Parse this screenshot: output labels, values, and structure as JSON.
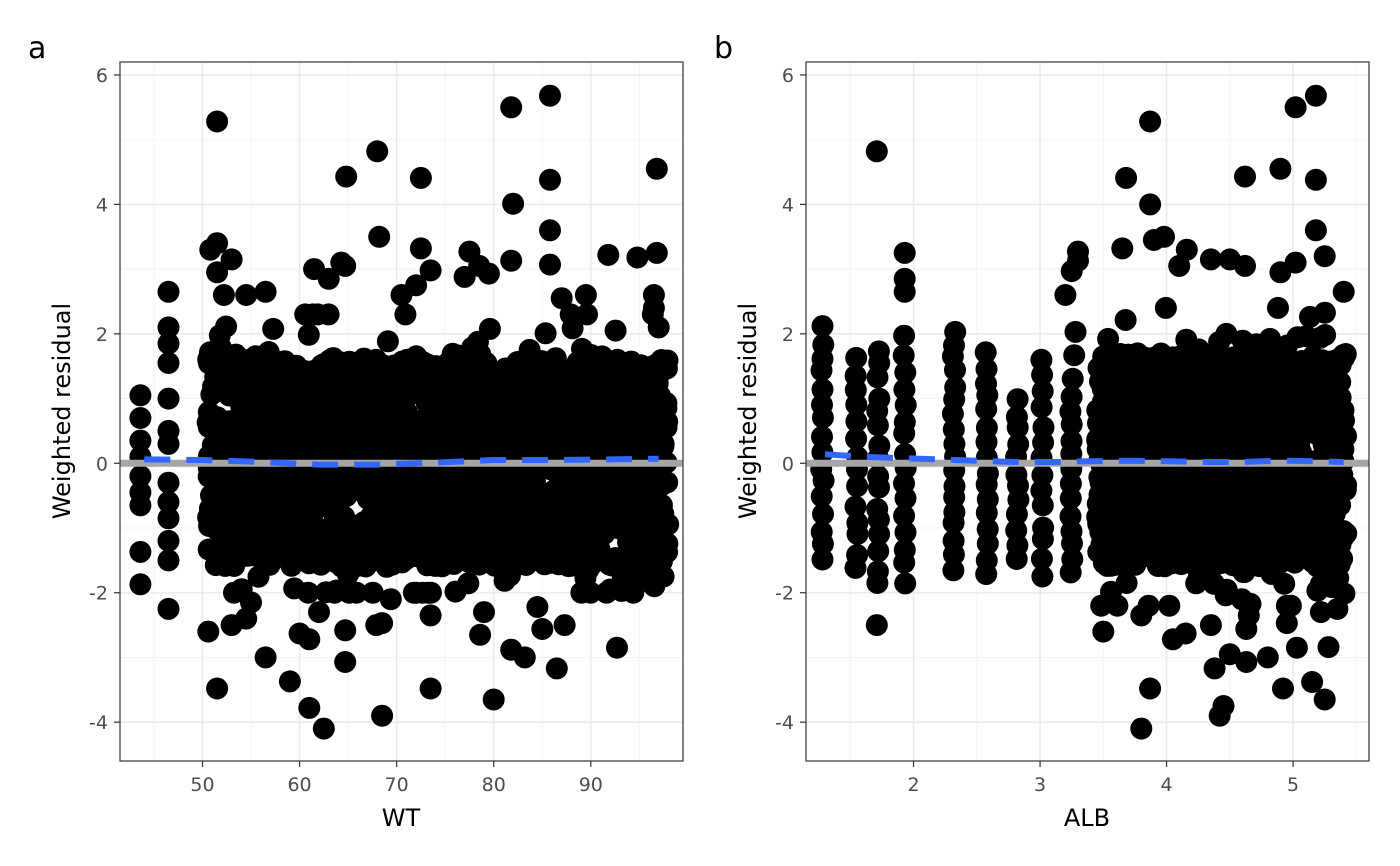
{
  "chart_data": [
    {
      "type": "scatter",
      "tag": "a",
      "xlabel": "WT",
      "ylabel": "Weighted residual",
      "xlim": [
        41.5,
        99.5
      ],
      "ylim": [
        -4.6,
        6.2
      ],
      "x_ticks": [
        50,
        60,
        70,
        80,
        90
      ],
      "x_tick_labels": [
        "50",
        "60",
        "70",
        "80",
        "90"
      ],
      "y_ticks": [
        -4,
        -2,
        0,
        2,
        4,
        6
      ],
      "y_tick_labels": [
        "-4",
        "-2",
        "0",
        "2",
        "4",
        "6"
      ],
      "grid": true,
      "reference_line": {
        "y": 0,
        "color": "#a6a6a6"
      },
      "smooth": {
        "color": "#3366ff",
        "x": [
          44,
          50,
          56,
          62,
          68,
          74,
          80,
          86,
          92,
          97
        ],
        "y": [
          0.06,
          0.05,
          0.02,
          -0.02,
          -0.02,
          0.01,
          0.05,
          0.05,
          0.06,
          0.07
        ]
      },
      "point_color": "#000000",
      "dense_region": {
        "x_range": [
          50.5,
          98
        ],
        "y_core": [
          -1.6,
          1.6
        ],
        "y_range": [
          -2.0,
          2.3
        ],
        "count": 1900
      },
      "points": [
        {
          "x": 43.6,
          "y": 1.05
        },
        {
          "x": 43.6,
          "y": 0.7
        },
        {
          "x": 43.6,
          "y": 0.35
        },
        {
          "x": 43.6,
          "y": 0.1
        },
        {
          "x": 43.6,
          "y": -0.2
        },
        {
          "x": 43.6,
          "y": -0.45
        },
        {
          "x": 43.6,
          "y": -0.65
        },
        {
          "x": 43.6,
          "y": -1.37
        },
        {
          "x": 43.6,
          "y": -1.87
        },
        {
          "x": 46.5,
          "y": 2.65
        },
        {
          "x": 46.5,
          "y": 2.1
        },
        {
          "x": 46.5,
          "y": 1.85
        },
        {
          "x": 46.5,
          "y": 1.55
        },
        {
          "x": 46.5,
          "y": 1.0
        },
        {
          "x": 46.5,
          "y": 0.5
        },
        {
          "x": 46.5,
          "y": 0.3
        },
        {
          "x": 46.5,
          "y": -0.3
        },
        {
          "x": 46.5,
          "y": -0.6
        },
        {
          "x": 46.5,
          "y": -0.85
        },
        {
          "x": 46.5,
          "y": -1.2
        },
        {
          "x": 46.5,
          "y": -1.5
        },
        {
          "x": 46.5,
          "y": -2.25
        },
        {
          "x": 51.5,
          "y": 5.28
        },
        {
          "x": 51.5,
          "y": -3.48
        },
        {
          "x": 50.6,
          "y": -2.6
        },
        {
          "x": 53.0,
          "y": -2.5
        },
        {
          "x": 51.5,
          "y": 3.4
        },
        {
          "x": 50.8,
          "y": 3.3
        },
        {
          "x": 53.0,
          "y": 3.15
        },
        {
          "x": 51.5,
          "y": 2.95
        },
        {
          "x": 52.2,
          "y": 2.6
        },
        {
          "x": 54.5,
          "y": 2.6
        },
        {
          "x": 56.5,
          "y": 2.65
        },
        {
          "x": 54.5,
          "y": -2.4
        },
        {
          "x": 55.0,
          "y": -2.15
        },
        {
          "x": 56.5,
          "y": -3.0
        },
        {
          "x": 59.0,
          "y": -3.37
        },
        {
          "x": 60.0,
          "y": -2.63
        },
        {
          "x": 61.0,
          "y": -2.72
        },
        {
          "x": 61.0,
          "y": -3.78
        },
        {
          "x": 62.5,
          "y": -4.1
        },
        {
          "x": 62.0,
          "y": -2.3
        },
        {
          "x": 61.5,
          "y": 3.0
        },
        {
          "x": 63.0,
          "y": 2.85
        },
        {
          "x": 64.3,
          "y": 3.1
        },
        {
          "x": 64.7,
          "y": 3.05
        },
        {
          "x": 64.8,
          "y": 4.43
        },
        {
          "x": 64.7,
          "y": -2.58
        },
        {
          "x": 64.7,
          "y": -3.07
        },
        {
          "x": 68.0,
          "y": 4.82
        },
        {
          "x": 68.2,
          "y": 3.5
        },
        {
          "x": 67.9,
          "y": -2.5
        },
        {
          "x": 68.5,
          "y": -2.47
        },
        {
          "x": 68.5,
          "y": -3.9
        },
        {
          "x": 69.4,
          "y": -2.1
        },
        {
          "x": 70.5,
          "y": 2.6
        },
        {
          "x": 72.0,
          "y": 2.75
        },
        {
          "x": 72.5,
          "y": 3.32
        },
        {
          "x": 72.5,
          "y": 4.41
        },
        {
          "x": 73.5,
          "y": 2.98
        },
        {
          "x": 73.5,
          "y": -3.48
        },
        {
          "x": 73.5,
          "y": -2.35
        },
        {
          "x": 77.0,
          "y": 2.88
        },
        {
          "x": 77.5,
          "y": 3.27
        },
        {
          "x": 78.5,
          "y": 3.05
        },
        {
          "x": 79.5,
          "y": 2.93
        },
        {
          "x": 79.0,
          "y": -2.3
        },
        {
          "x": 78.6,
          "y": -2.65
        },
        {
          "x": 80.0,
          "y": -3.65
        },
        {
          "x": 81.8,
          "y": 5.5
        },
        {
          "x": 82.0,
          "y": 4.01
        },
        {
          "x": 81.8,
          "y": 3.13
        },
        {
          "x": 81.8,
          "y": -2.88
        },
        {
          "x": 83.2,
          "y": -3.0
        },
        {
          "x": 85.0,
          "y": -2.56
        },
        {
          "x": 84.5,
          "y": -2.22
        },
        {
          "x": 85.8,
          "y": 5.68
        },
        {
          "x": 85.8,
          "y": 4.38
        },
        {
          "x": 85.8,
          "y": 3.6
        },
        {
          "x": 85.8,
          "y": 3.07
        },
        {
          "x": 86.5,
          "y": -3.17
        },
        {
          "x": 87.3,
          "y": -2.5
        },
        {
          "x": 87.0,
          "y": 2.55
        },
        {
          "x": 89.5,
          "y": 2.6
        },
        {
          "x": 91.8,
          "y": 3.22
        },
        {
          "x": 94.8,
          "y": 3.18
        },
        {
          "x": 96.8,
          "y": 4.55
        },
        {
          "x": 96.8,
          "y": 3.25
        },
        {
          "x": 92.7,
          "y": -2.85
        },
        {
          "x": 92.0,
          "y": -1.95
        },
        {
          "x": 95.0,
          "y": -1.75
        },
        {
          "x": 97.5,
          "y": -1.75
        },
        {
          "x": 97.5,
          "y": 0.93
        },
        {
          "x": 97.5,
          "y": 0.3
        },
        {
          "x": 97.5,
          "y": -1.25
        },
        {
          "x": 96.5,
          "y": 2.6
        },
        {
          "x": 96.5,
          "y": 2.4
        },
        {
          "x": 97.0,
          "y": 2.1
        }
      ]
    },
    {
      "type": "scatter",
      "tag": "b",
      "xlabel": "ALB",
      "ylabel": "Weighted residual",
      "xlim": [
        1.15,
        5.6
      ],
      "ylim": [
        -4.6,
        6.2
      ],
      "x_ticks": [
        2,
        3,
        4,
        5
      ],
      "x_tick_labels": [
        "2",
        "3",
        "4",
        "5"
      ],
      "y_ticks": [
        -4,
        -2,
        0,
        2,
        4,
        6
      ],
      "y_tick_labels": [
        "-4",
        "-2",
        "0",
        "2",
        "4",
        "6"
      ],
      "grid": true,
      "reference_line": {
        "y": 0,
        "color": "#a6a6a6"
      },
      "smooth": {
        "color": "#3366ff",
        "x": [
          1.3,
          1.6,
          1.9,
          2.2,
          2.5,
          2.8,
          3.1,
          3.4,
          3.7,
          4.0,
          4.3,
          4.6,
          4.9,
          5.2,
          5.4
        ],
        "y": [
          0.14,
          0.1,
          0.08,
          0.06,
          0.04,
          0.02,
          0.02,
          0.03,
          0.04,
          0.03,
          0.02,
          0.02,
          0.04,
          0.03,
          0.02
        ]
      },
      "point_color": "#000000",
      "dense_region": {
        "x_range": [
          3.45,
          5.42
        ],
        "y_core": [
          -1.6,
          1.7
        ],
        "y_range": [
          -2.2,
          2.4
        ],
        "count": 1500
      },
      "columns": [
        {
          "x": 1.28,
          "y_max": 2.12,
          "y_min": -1.52,
          "n": 16
        },
        {
          "x": 1.55,
          "y_max": 1.62,
          "y_min": -1.62,
          "n": 14
        },
        {
          "x": 1.72,
          "y_max": 1.77,
          "y_min": -1.87,
          "n": 16
        },
        {
          "x": 1.93,
          "y_max": 1.93,
          "y_min": -1.82,
          "n": 16
        },
        {
          "x": 2.32,
          "y_max": 2.07,
          "y_min": -1.62,
          "n": 18
        },
        {
          "x": 2.58,
          "y_max": 1.72,
          "y_min": -1.72,
          "n": 16
        },
        {
          "x": 2.82,
          "y_max": 0.95,
          "y_min": -1.47,
          "n": 12
        },
        {
          "x": 3.02,
          "y_max": 1.62,
          "y_min": -1.72,
          "n": 14
        },
        {
          "x": 3.25,
          "y_max": 1.3,
          "y_min": -1.72,
          "n": 14
        }
      ],
      "points": [
        {
          "x": 1.71,
          "y": 4.82
        },
        {
          "x": 1.71,
          "y": -2.5
        },
        {
          "x": 1.93,
          "y": 3.25
        },
        {
          "x": 1.93,
          "y": 2.85
        },
        {
          "x": 1.93,
          "y": 2.65
        },
        {
          "x": 3.2,
          "y": 2.6
        },
        {
          "x": 3.25,
          "y": 2.97
        },
        {
          "x": 3.3,
          "y": 3.13
        },
        {
          "x": 3.3,
          "y": 3.27
        },
        {
          "x": 3.28,
          "y": 2.03
        },
        {
          "x": 3.27,
          "y": 1.67
        },
        {
          "x": 3.5,
          "y": -2.6
        },
        {
          "x": 3.68,
          "y": 4.41
        },
        {
          "x": 3.65,
          "y": 3.32
        },
        {
          "x": 3.87,
          "y": 5.28
        },
        {
          "x": 3.87,
          "y": 4.0
        },
        {
          "x": 3.9,
          "y": 3.45
        },
        {
          "x": 3.98,
          "y": 3.5
        },
        {
          "x": 4.16,
          "y": 3.3
        },
        {
          "x": 4.1,
          "y": 3.05
        },
        {
          "x": 4.35,
          "y": 3.15
        },
        {
          "x": 4.5,
          "y": 3.15
        },
        {
          "x": 4.62,
          "y": 3.05
        },
        {
          "x": 4.62,
          "y": 4.43
        },
        {
          "x": 4.9,
          "y": 4.55
        },
        {
          "x": 4.9,
          "y": 2.95
        },
        {
          "x": 5.02,
          "y": 5.5
        },
        {
          "x": 5.02,
          "y": 3.1
        },
        {
          "x": 5.18,
          "y": 5.68
        },
        {
          "x": 5.18,
          "y": 4.38
        },
        {
          "x": 5.18,
          "y": 3.6
        },
        {
          "x": 5.25,
          "y": 3.2
        },
        {
          "x": 5.4,
          "y": 2.65
        },
        {
          "x": 3.8,
          "y": -4.1
        },
        {
          "x": 3.87,
          "y": -3.48
        },
        {
          "x": 3.8,
          "y": -2.35
        },
        {
          "x": 4.05,
          "y": -2.72
        },
        {
          "x": 4.15,
          "y": -2.63
        },
        {
          "x": 4.35,
          "y": -2.5
        },
        {
          "x": 4.38,
          "y": -3.17
        },
        {
          "x": 4.42,
          "y": -3.9
        },
        {
          "x": 4.45,
          "y": -3.75
        },
        {
          "x": 4.5,
          "y": -2.95
        },
        {
          "x": 4.63,
          "y": -3.07
        },
        {
          "x": 4.63,
          "y": -2.56
        },
        {
          "x": 4.65,
          "y": -2.35
        },
        {
          "x": 4.8,
          "y": -3.0
        },
        {
          "x": 4.92,
          "y": -3.48
        },
        {
          "x": 4.95,
          "y": -2.47
        },
        {
          "x": 5.03,
          "y": -2.85
        },
        {
          "x": 5.15,
          "y": -3.38
        },
        {
          "x": 5.25,
          "y": -3.65
        },
        {
          "x": 5.28,
          "y": -2.84
        },
        {
          "x": 5.22,
          "y": -2.3
        },
        {
          "x": 5.35,
          "y": -2.25
        }
      ]
    }
  ]
}
